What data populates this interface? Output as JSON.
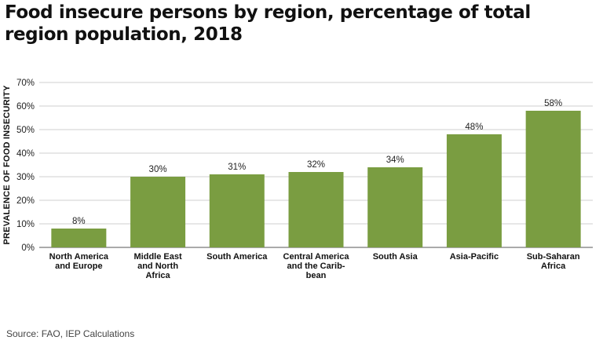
{
  "header": {
    "title": "Food insecure persons by region, percentage of total region population, 2018"
  },
  "footer": {
    "source": "Source: FAO, IEP Calculations"
  },
  "chart_data": {
    "type": "bar",
    "title": "Food insecure persons by region, percentage of total region population, 2018",
    "xlabel": "",
    "ylabel": "PREVALENCE OF FOOD INSECURITY",
    "ylim": [
      0,
      70
    ],
    "yticks": [
      "0%",
      "10%",
      "20%",
      "30%",
      "40%",
      "50%",
      "60%",
      "70%"
    ],
    "grid": true,
    "categories": [
      [
        "North America",
        "and Europe"
      ],
      [
        "Middle East",
        "and North",
        "Africa"
      ],
      [
        "South America"
      ],
      [
        "Central America",
        "and the Carib-",
        "bean"
      ],
      [
        "South Asia"
      ],
      [
        "Asia-Pacific"
      ],
      [
        "Sub-Saharan",
        "Africa"
      ]
    ],
    "values": [
      8,
      30,
      31,
      32,
      34,
      48,
      58
    ],
    "data_labels": [
      "8%",
      "30%",
      "31%",
      "32%",
      "34%",
      "48%",
      "58%"
    ],
    "bar_color": "#7a9d41"
  }
}
